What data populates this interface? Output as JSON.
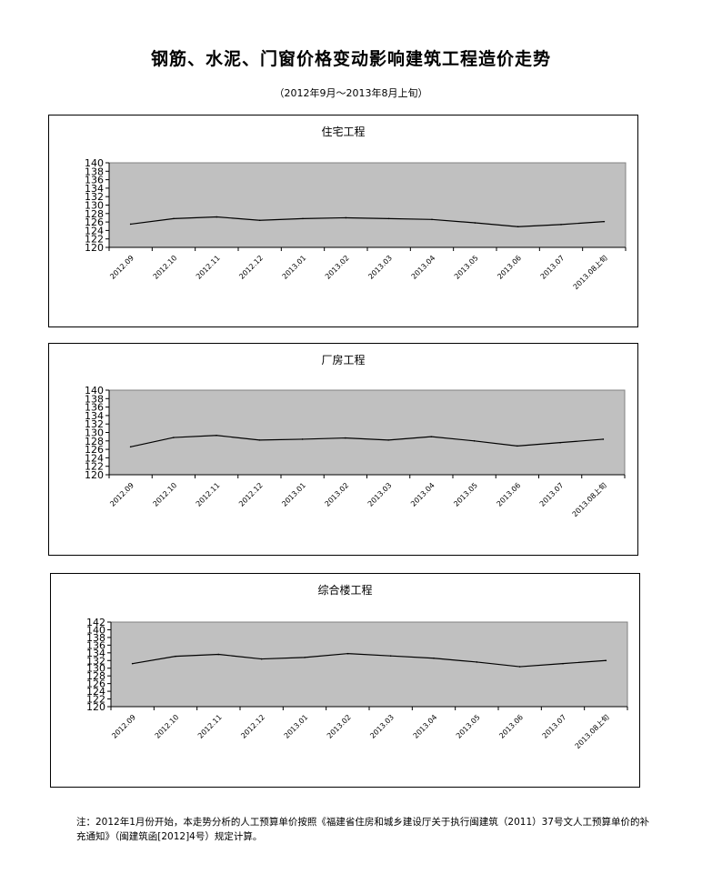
{
  "main_title": "钢筋、水泥、门窗价格变动影响建筑工程造价走势",
  "sub_title": "（2012年9月～2013年8月上旬）",
  "note": "注：2012年1月份开始，本走势分析的人工预算单价按照《福建省住房和城乡建设厅关于执行闽建筑（2011）37号文人工预算单价的补充通知》（闽建筑函[2012]4号）规定计算。",
  "colors": {
    "plot_bg": "#c0c0c0",
    "line": "#000000",
    "page_bg": "#ffffff"
  },
  "chart_data": [
    {
      "type": "line",
      "title": "住宅工程",
      "categories": [
        "2012.09",
        "2012.10",
        "2012.11",
        "2012.12",
        "2013.01",
        "2013.02",
        "2013.03",
        "2013.04",
        "2013.05",
        "2013.06",
        "2013.07",
        "2013.08上旬"
      ],
      "series": [
        {
          "values": [
            125.5,
            126.8,
            127.2,
            126.4,
            126.8,
            127.0,
            126.8,
            126.6,
            125.8,
            124.9,
            125.4,
            126.1
          ]
        }
      ],
      "ylim": [
        120,
        140
      ],
      "yticks": [
        120,
        122,
        124,
        126,
        128,
        130,
        132,
        134,
        136,
        138,
        140
      ],
      "grid": false
    },
    {
      "type": "line",
      "title": "厂房工程",
      "categories": [
        "2012.09",
        "2012.10",
        "2012.11",
        "2012.12",
        "2013.01",
        "2013.02",
        "2013.03",
        "2013.04",
        "2013.05",
        "2013.06",
        "2013.07",
        "2013.08上旬"
      ],
      "series": [
        {
          "values": [
            126.6,
            128.8,
            129.3,
            128.2,
            128.4,
            128.7,
            128.2,
            129.0,
            128.0,
            126.8,
            127.6,
            128.4
          ]
        }
      ],
      "ylim": [
        120,
        140
      ],
      "yticks": [
        120,
        122,
        124,
        126,
        128,
        130,
        132,
        134,
        136,
        138,
        140
      ],
      "grid": false
    },
    {
      "type": "line",
      "title": "综合楼工程",
      "categories": [
        "2012.09",
        "2012.10",
        "2012.11",
        "2012.12",
        "2013.01",
        "2013.02",
        "2013.03",
        "2013.04",
        "2013.05",
        "2013.06",
        "2013.07",
        "2013.08上旬"
      ],
      "series": [
        {
          "values": [
            131.2,
            133.1,
            133.6,
            132.4,
            132.8,
            133.8,
            133.2,
            132.6,
            131.6,
            130.4,
            131.2,
            132.0
          ]
        }
      ],
      "ylim": [
        120,
        142
      ],
      "yticks": [
        120,
        122,
        124,
        126,
        128,
        130,
        132,
        134,
        136,
        138,
        140,
        142
      ],
      "grid": false
    }
  ]
}
